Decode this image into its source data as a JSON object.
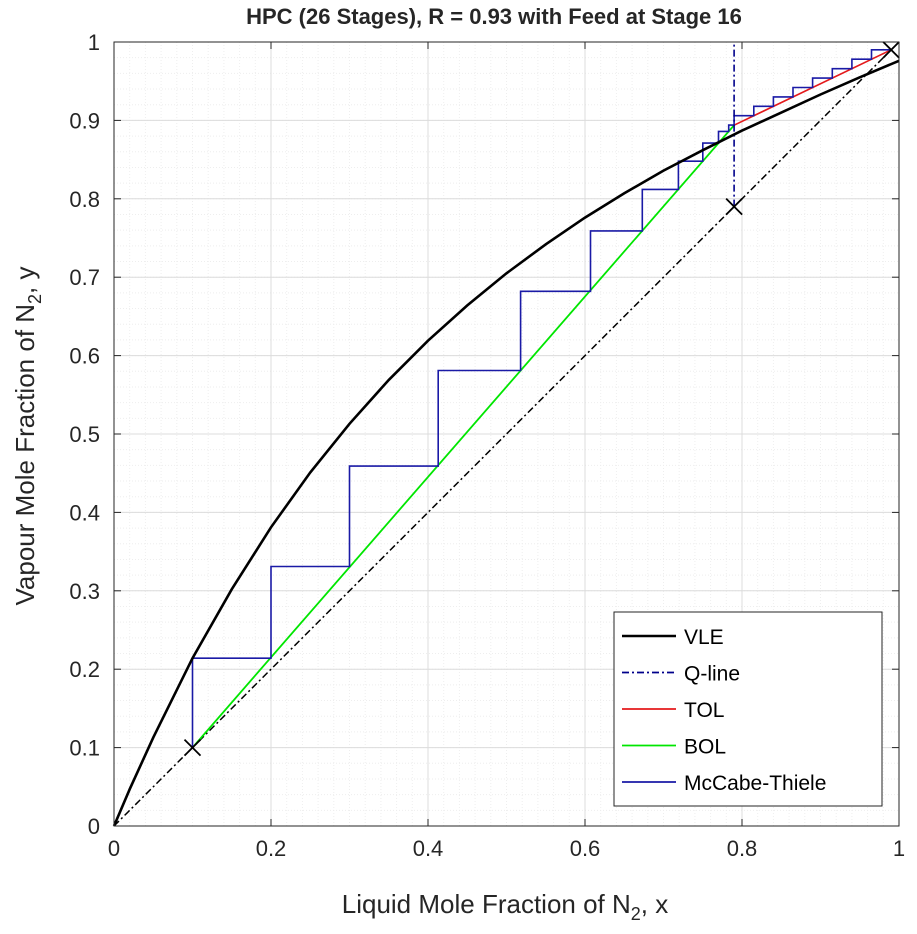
{
  "chart_data": {
    "type": "line",
    "title": "HPC (26 Stages), R = 0.93 with Feed at Stage 16",
    "xlabel": {
      "pre": "Liquid Mole Fraction of N",
      "sub": "2",
      "post": ", x"
    },
    "ylabel": {
      "pre": "Vapour Mole Fraction of N",
      "sub": "2",
      "post": ", y"
    },
    "xlim": [
      0,
      1
    ],
    "ylim": [
      0,
      1
    ],
    "xticks": [
      0,
      0.2,
      0.4,
      0.6,
      0.8,
      1
    ],
    "xtick_labels": [
      "0",
      "0.2",
      "0.4",
      "0.6",
      "0.8",
      "1"
    ],
    "yticks": [
      0,
      0.1,
      0.2,
      0.3,
      0.4,
      0.5,
      0.6,
      0.7,
      0.8,
      0.9,
      1
    ],
    "ytick_labels": [
      "0",
      "0.1",
      "0.2",
      "0.3",
      "0.4",
      "0.5",
      "0.6",
      "0.7",
      "0.8",
      "0.9",
      "1"
    ],
    "grid": true,
    "minor_grid": true,
    "legend_position": "bottom-right",
    "series": [
      {
        "name": "VLE",
        "color": "#000000",
        "style": "solid",
        "x": [
          0,
          0.02,
          0.05,
          0.1,
          0.15,
          0.2,
          0.25,
          0.3,
          0.35,
          0.4,
          0.45,
          0.5,
          0.55,
          0.6,
          0.65,
          0.7,
          0.75,
          0.8,
          0.85,
          0.9,
          0.95,
          1.0
        ],
        "y": [
          0,
          0.047,
          0.113,
          0.214,
          0.302,
          0.381,
          0.451,
          0.513,
          0.569,
          0.619,
          0.664,
          0.705,
          0.742,
          0.776,
          0.807,
          0.836,
          0.862,
          0.887,
          0.91,
          0.933,
          0.955,
          0.976
        ]
      },
      {
        "name": "Q-line",
        "color": "#00008b",
        "style": "dashdot",
        "x": [
          0.79,
          0.79
        ],
        "y": [
          0.79,
          1.0
        ]
      },
      {
        "name": "TOL",
        "color": "#e41a1c",
        "style": "solid",
        "x": [
          0.79,
          0.99
        ],
        "y": [
          0.8939,
          0.99
        ]
      },
      {
        "name": "BOL",
        "color": "#00e600",
        "style": "solid",
        "x": [
          0.1,
          0.79
        ],
        "y": [
          0.1,
          0.8939
        ]
      },
      {
        "name": "McCabe-Thiele",
        "color": "#1a1aa6",
        "style": "solid",
        "x": [
          0.1,
          0.1,
          0.2,
          0.2,
          0.3,
          0.3,
          0.413,
          0.413,
          0.518,
          0.518,
          0.607,
          0.607,
          0.673,
          0.673,
          0.719,
          0.719,
          0.75,
          0.75,
          0.77,
          0.77,
          0.783,
          0.783,
          0.79,
          0.79,
          0.815,
          0.815,
          0.84,
          0.84,
          0.865,
          0.865,
          0.89,
          0.89,
          0.915,
          0.915,
          0.94,
          0.94,
          0.965,
          0.965,
          0.99
        ],
        "y": [
          0.1,
          0.214,
          0.214,
          0.331,
          0.331,
          0.459,
          0.459,
          0.581,
          0.581,
          0.682,
          0.682,
          0.759,
          0.759,
          0.812,
          0.812,
          0.848,
          0.848,
          0.871,
          0.871,
          0.886,
          0.886,
          0.894,
          0.894,
          0.906,
          0.906,
          0.918,
          0.918,
          0.93,
          0.93,
          0.942,
          0.942,
          0.954,
          0.954,
          0.966,
          0.966,
          0.978,
          0.978,
          0.99,
          0.99
        ]
      }
    ],
    "diagonal": {
      "color": "#000000",
      "style": "dashdot",
      "x": [
        0,
        1
      ],
      "y": [
        0,
        1
      ]
    },
    "markers": [
      {
        "x": 0.1,
        "y": 0.1
      },
      {
        "x": 0.79,
        "y": 0.79
      },
      {
        "x": 0.99,
        "y": 0.99
      }
    ]
  }
}
